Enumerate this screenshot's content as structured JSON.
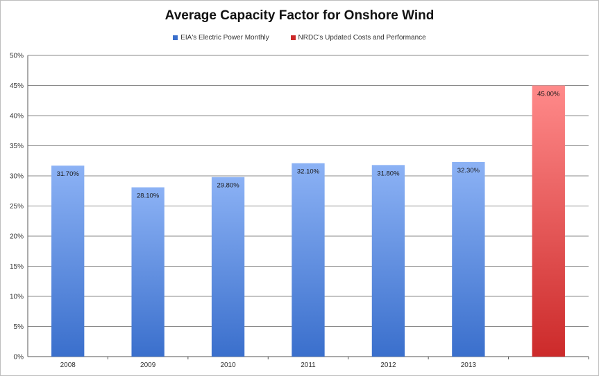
{
  "chart_data": {
    "type": "bar",
    "title": "Average Capacity Factor for Onshore Wind",
    "xlabel": "",
    "ylabel": "",
    "ylim": [
      0,
      50
    ],
    "y_tick_step": 5,
    "y_tick_labels": [
      "0%",
      "5%",
      "10%",
      "15%",
      "20%",
      "25%",
      "30%",
      "35%",
      "40%",
      "45%",
      "50%"
    ],
    "grid": true,
    "legend_position": "top",
    "categories": [
      "2008",
      "2009",
      "2010",
      "2011",
      "2012",
      "2013",
      ""
    ],
    "series": [
      {
        "name": "EIA's Electric Power Monthly",
        "color": "#3a6fcc",
        "color_light": "#8cb2f5",
        "values": [
          31.7,
          28.1,
          29.8,
          32.1,
          31.8,
          32.3,
          null
        ],
        "data_labels": [
          "31.70%",
          "28.10%",
          "29.80%",
          "32.10%",
          "31.80%",
          "32.30%",
          ""
        ]
      },
      {
        "name": "NRDC's Updated Costs and Performance",
        "color": "#cc2a2a",
        "color_light": "#ff8a8a",
        "values": [
          null,
          null,
          null,
          null,
          null,
          null,
          45.0
        ],
        "data_labels": [
          "",
          "",
          "",
          "",
          "",
          "",
          "45.00%"
        ]
      }
    ]
  }
}
